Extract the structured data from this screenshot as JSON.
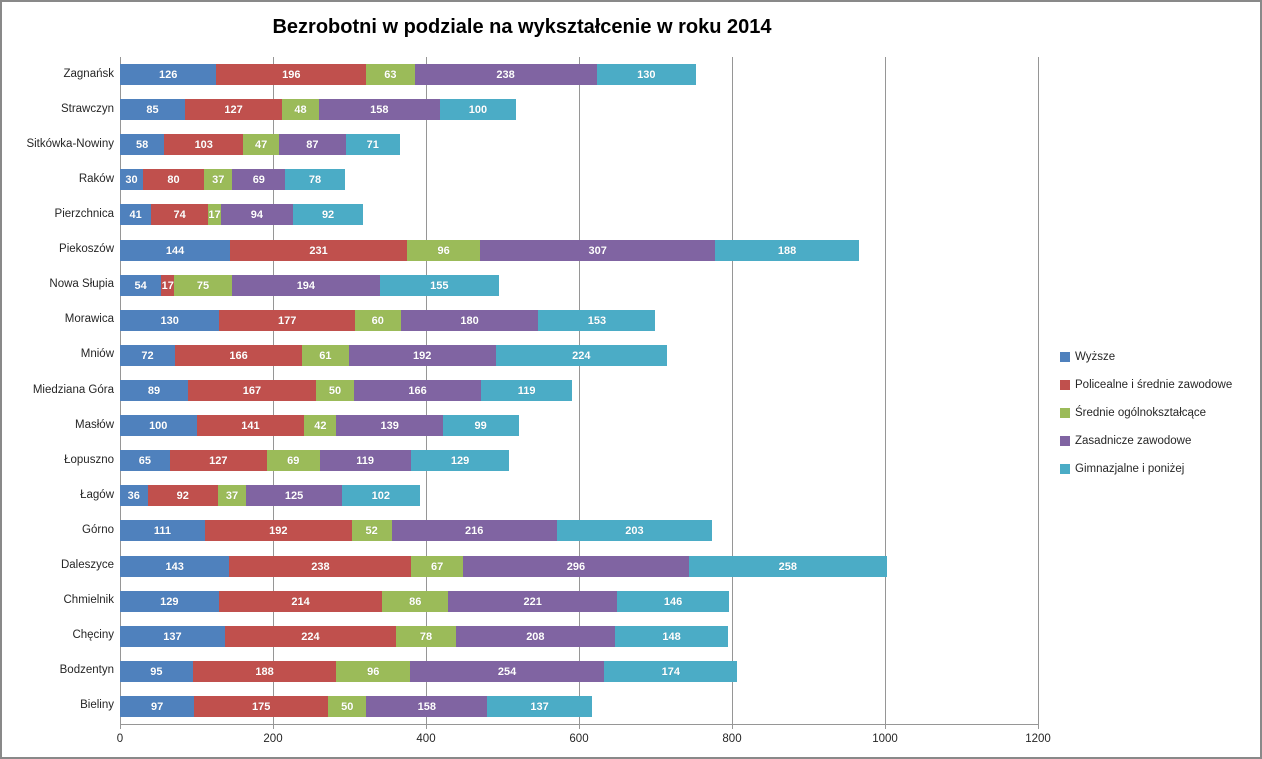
{
  "title": "Bezrobotni w podziale na wykształcenie w roku 2014",
  "chart_data": {
    "type": "bar",
    "orientation": "horizontal",
    "stacked": true,
    "title": "Bezrobotni w podziale na wykształcenie w roku 2014",
    "xlabel": "",
    "ylabel": "",
    "xlim": [
      0,
      1200
    ],
    "x_ticks": [
      0,
      200,
      400,
      600,
      800,
      1000,
      1200
    ],
    "grid": "vertical",
    "data_labels": true,
    "legend_position": "right",
    "categories": [
      "Zagnańsk",
      "Strawczyn",
      "Sitkówka-Nowiny",
      "Raków",
      "Pierzchnica",
      "Piekoszów",
      "Nowa Słupia",
      "Morawica",
      "Mniów",
      "Miedziana Góra",
      "Masłów",
      "Łopuszno",
      "Łagów",
      "Górno",
      "Daleszyce",
      "Chmielnik",
      "Chęciny",
      "Bodzentyn",
      "Bieliny"
    ],
    "series": [
      {
        "name": "Wyższe",
        "color": "#4F81BD",
        "values": [
          126,
          85,
          58,
          30,
          41,
          144,
          54,
          130,
          72,
          89,
          100,
          65,
          36,
          111,
          143,
          129,
          137,
          95,
          97
        ]
      },
      {
        "name": "Policealne i średnie zawodowe",
        "color": "#C0504D",
        "values": [
          196,
          127,
          103,
          80,
          74,
          231,
          17,
          177,
          166,
          167,
          141,
          127,
          92,
          192,
          238,
          214,
          224,
          188,
          175
        ]
      },
      {
        "name": "Średnie ogólnokształcące",
        "color": "#9BBB59",
        "values": [
          63,
          48,
          47,
          37,
          17,
          96,
          75,
          60,
          61,
          50,
          42,
          69,
          37,
          52,
          67,
          86,
          78,
          96,
          50
        ]
      },
      {
        "name": "Zasadnicze zawodowe",
        "color": "#8064A2",
        "values": [
          238,
          158,
          87,
          69,
          94,
          307,
          194,
          180,
          192,
          166,
          139,
          119,
          125,
          216,
          296,
          221,
          208,
          254,
          158
        ]
      },
      {
        "name": "Gimnazjalne i poniżej",
        "color": "#4BACC6",
        "values": [
          130,
          100,
          71,
          78,
          92,
          188,
          155,
          153,
          224,
          119,
          99,
          129,
          102,
          203,
          258,
          146,
          148,
          174,
          137
        ]
      }
    ]
  },
  "colors": {
    "gridline": "#969696",
    "axis": "#969696",
    "frame": "#898989",
    "data_label": "#ffffff"
  }
}
